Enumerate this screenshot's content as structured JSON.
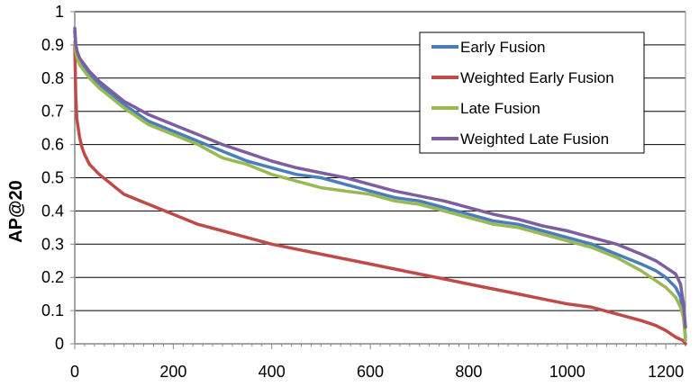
{
  "chart_data": {
    "type": "line",
    "title": "",
    "xlabel": "",
    "ylabel": "AP@20",
    "xlim": [
      0,
      1240
    ],
    "ylim": [
      0,
      1
    ],
    "x_ticks": [
      "0",
      "200",
      "400",
      "600",
      "800",
      "1000",
      "1200"
    ],
    "y_ticks": [
      "0",
      "0.1",
      "0.2",
      "0.3",
      "0.4",
      "0.5",
      "0.6",
      "0.7",
      "0.8",
      "0.9",
      "1"
    ],
    "grid": "horizontal",
    "legend_position": "top-right",
    "series": [
      {
        "name": "Early Fusion",
        "color": "#4a7ebb",
        "x": [
          0,
          2,
          5,
          10,
          20,
          30,
          50,
          75,
          100,
          150,
          200,
          250,
          300,
          350,
          400,
          450,
          500,
          550,
          600,
          650,
          700,
          750,
          800,
          850,
          900,
          950,
          1000,
          1050,
          1100,
          1150,
          1180,
          1200,
          1220,
          1230,
          1236,
          1240
        ],
        "y": [
          0.94,
          0.9,
          0.87,
          0.85,
          0.83,
          0.81,
          0.78,
          0.75,
          0.72,
          0.67,
          0.64,
          0.61,
          0.58,
          0.55,
          0.53,
          0.51,
          0.5,
          0.48,
          0.46,
          0.44,
          0.43,
          0.41,
          0.39,
          0.37,
          0.36,
          0.34,
          0.32,
          0.3,
          0.27,
          0.24,
          0.22,
          0.2,
          0.17,
          0.14,
          0.08,
          0.02
        ]
      },
      {
        "name": "Weighted Early Fusion",
        "color": "#be4b48",
        "x": [
          0,
          1,
          2,
          4,
          7,
          10,
          15,
          20,
          30,
          50,
          75,
          100,
          150,
          200,
          250,
          300,
          350,
          400,
          450,
          500,
          550,
          600,
          650,
          700,
          750,
          800,
          850,
          900,
          950,
          1000,
          1050,
          1100,
          1150,
          1180,
          1200,
          1220,
          1235,
          1240
        ],
        "y": [
          0.9,
          0.83,
          0.75,
          0.68,
          0.65,
          0.62,
          0.59,
          0.57,
          0.54,
          0.51,
          0.48,
          0.45,
          0.42,
          0.39,
          0.36,
          0.34,
          0.32,
          0.3,
          0.285,
          0.27,
          0.255,
          0.24,
          0.225,
          0.21,
          0.195,
          0.18,
          0.165,
          0.15,
          0.135,
          0.12,
          0.11,
          0.09,
          0.07,
          0.055,
          0.04,
          0.02,
          0.01,
          0.0
        ]
      },
      {
        "name": "Late Fusion",
        "color": "#98b954",
        "x": [
          0,
          2,
          5,
          10,
          20,
          30,
          50,
          75,
          100,
          150,
          200,
          250,
          300,
          350,
          400,
          450,
          500,
          550,
          600,
          650,
          700,
          750,
          800,
          850,
          900,
          950,
          1000,
          1050,
          1100,
          1150,
          1180,
          1200,
          1220,
          1230,
          1236,
          1240
        ],
        "y": [
          0.91,
          0.88,
          0.86,
          0.84,
          0.82,
          0.8,
          0.77,
          0.74,
          0.71,
          0.66,
          0.63,
          0.6,
          0.56,
          0.54,
          0.51,
          0.49,
          0.47,
          0.46,
          0.45,
          0.43,
          0.42,
          0.4,
          0.38,
          0.36,
          0.35,
          0.33,
          0.31,
          0.29,
          0.26,
          0.22,
          0.19,
          0.17,
          0.14,
          0.11,
          0.08,
          0.01
        ]
      },
      {
        "name": "Weighted Late Fusion",
        "color": "#7d5fa0",
        "x": [
          0,
          2,
          5,
          10,
          20,
          30,
          50,
          75,
          100,
          150,
          200,
          250,
          300,
          350,
          400,
          450,
          500,
          550,
          600,
          650,
          700,
          750,
          800,
          850,
          900,
          950,
          1000,
          1050,
          1100,
          1150,
          1180,
          1200,
          1220,
          1230,
          1236,
          1240
        ],
        "y": [
          0.95,
          0.9,
          0.88,
          0.86,
          0.84,
          0.82,
          0.79,
          0.76,
          0.73,
          0.69,
          0.66,
          0.63,
          0.6,
          0.575,
          0.55,
          0.53,
          0.515,
          0.5,
          0.48,
          0.46,
          0.445,
          0.43,
          0.41,
          0.39,
          0.375,
          0.355,
          0.34,
          0.32,
          0.3,
          0.27,
          0.25,
          0.23,
          0.21,
          0.18,
          0.12,
          0.05
        ]
      }
    ]
  }
}
